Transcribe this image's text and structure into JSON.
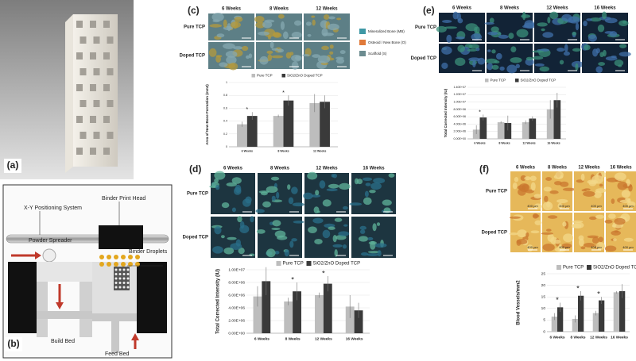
{
  "panels": {
    "a": {
      "label": "(a)"
    },
    "b": {
      "label": "(b)",
      "parts": [
        "X-Y Positioning System",
        "Binder Print Head",
        "Powder Spreader",
        "Binder Droplets",
        "Build Bed",
        "Feed Bed"
      ]
    },
    "c": {
      "label": "(c)",
      "columns": [
        "6 Weeks",
        "8 Weeks",
        "12 Weeks"
      ],
      "rows": [
        "Pure TCP",
        "Doped TCP"
      ],
      "legend": [
        "Mineralized Bone (MB)",
        "Osteoid / New Bone (O)",
        "Scaffold (S)"
      ]
    },
    "d": {
      "label": "(d)",
      "columns": [
        "6 Weeks",
        "8 Weeks",
        "12 Weeks",
        "16 Weeks"
      ],
      "rows": [
        "Pure TCP",
        "Doped TCP"
      ]
    },
    "e": {
      "label": "(e)",
      "columns": [
        "6 Weeks",
        "8 Weeks",
        "12 Weeks",
        "16 Weeks"
      ],
      "rows": [
        "Pure TCP",
        "Doped TCP"
      ]
    },
    "f": {
      "label": "(f)",
      "columns": [
        "6 Weeks",
        "8 Weeks",
        "12 Weeks",
        "16 Weeks"
      ],
      "rows": [
        "Pure TCP",
        "Doped TCP"
      ],
      "scale_bar": "400 µm"
    }
  },
  "chart_data": [
    {
      "type": "bar",
      "y_label": "Area of New Bone Formation (mm2)",
      "categories": [
        "6 Weeks",
        "8 Weeks",
        "12 Weeks"
      ],
      "series": [
        {
          "name": "Pure TCP",
          "color": "#bdbdbd",
          "values": [
            0.35,
            0.48,
            0.68
          ],
          "errors": [
            0.04,
            0.02,
            0.14
          ]
        },
        {
          "name": "SiO2/ZnO Doped TCP",
          "color": "#3a3a3a",
          "values": [
            0.48,
            0.72,
            0.7
          ],
          "errors": [
            0.06,
            0.08,
            0.1
          ]
        }
      ],
      "significance": [
        "*",
        "*",
        null
      ],
      "ylim": [
        0,
        1
      ],
      "yticks": [
        0,
        0.2,
        0.4,
        0.6,
        0.8,
        1
      ]
    },
    {
      "type": "bar",
      "y_label": "Total Corrected Intensity (IU)",
      "categories": [
        "6 Weeks",
        "8 Weeks",
        "12 Weeks",
        "16 Weeks"
      ],
      "series": [
        {
          "name": "Pure TCP",
          "color": "#bdbdbd",
          "values": [
            5800000,
            5000000,
            6000000,
            4200000
          ],
          "errors": [
            1600000,
            600000,
            400000,
            1800000
          ]
        },
        {
          "name": "SiO2/ZnO Doped TCP",
          "color": "#3a3a3a",
          "values": [
            8200000,
            6600000,
            7800000,
            3600000
          ],
          "errors": [
            2200000,
            1400000,
            1200000,
            1200000
          ]
        }
      ],
      "significance": [
        null,
        "*",
        "*",
        null
      ],
      "ylim": [
        0,
        10000000
      ],
      "yticks": [
        {
          "value": 0,
          "label": "0.00E+00"
        },
        {
          "value": 2000000,
          "label": "2.00E+06"
        },
        {
          "value": 4000000,
          "label": "4.00E+06"
        },
        {
          "value": 6000000,
          "label": "6.00E+06"
        },
        {
          "value": 8000000,
          "label": "8.00E+06"
        },
        {
          "value": 10000000,
          "label": "1.00E+07"
        }
      ]
    },
    {
      "type": "bar",
      "y_label": "Total Corrected Intensity (IU)",
      "categories": [
        "6 Weeks",
        "8 Weeks",
        "12 Weeks",
        "16 Weeks"
      ],
      "series": [
        {
          "name": "Pure TCP",
          "color": "#bdbdbd",
          "values": [
            2500000,
            4500000,
            4500000,
            8000000
          ],
          "errors": [
            1200000,
            300000,
            500000,
            2500000
          ]
        },
        {
          "name": "SiO2/ZnO Doped TCP",
          "color": "#3a3a3a",
          "values": [
            5800000,
            4300000,
            5500000,
            10500000
          ],
          "errors": [
            800000,
            2000000,
            600000,
            2000000
          ]
        }
      ],
      "significance": [
        "*",
        null,
        null,
        null
      ],
      "ylim": [
        0,
        14000000
      ],
      "yticks": [
        {
          "value": 0,
          "label": "0.00E+00"
        },
        {
          "value": 2000000,
          "label": "2.00E+06"
        },
        {
          "value": 4000000,
          "label": "4.00E+06"
        },
        {
          "value": 6000000,
          "label": "6.00E+06"
        },
        {
          "value": 8000000,
          "label": "8.00E+06"
        },
        {
          "value": 10000000,
          "label": "1.00E+07"
        },
        {
          "value": 12000000,
          "label": "1.20E+07"
        },
        {
          "value": 14000000,
          "label": "1.40E+07"
        }
      ]
    },
    {
      "type": "bar",
      "y_label": "Blood Vessels/mm2",
      "categories": [
        "6 Weeks",
        "8 Weeks",
        "12 Weeks",
        "16 Weeks"
      ],
      "series": [
        {
          "name": "Pure TCP",
          "color": "#bdbdbd",
          "values": [
            6.5,
            5.5,
            8,
            17
          ],
          "errors": [
            1.5,
            1.5,
            1,
            0.5
          ]
        },
        {
          "name": "SiO2/ZnO Doped TCP",
          "color": "#3a3a3a",
          "values": [
            10.5,
            15.5,
            13.5,
            17.5
          ],
          "errors": [
            2,
            2,
            1.5,
            3
          ]
        }
      ],
      "significance": [
        "*",
        "*",
        "*",
        null
      ],
      "ylim": [
        0,
        25
      ],
      "yticks": [
        0,
        5,
        10,
        15,
        20,
        25
      ]
    }
  ]
}
